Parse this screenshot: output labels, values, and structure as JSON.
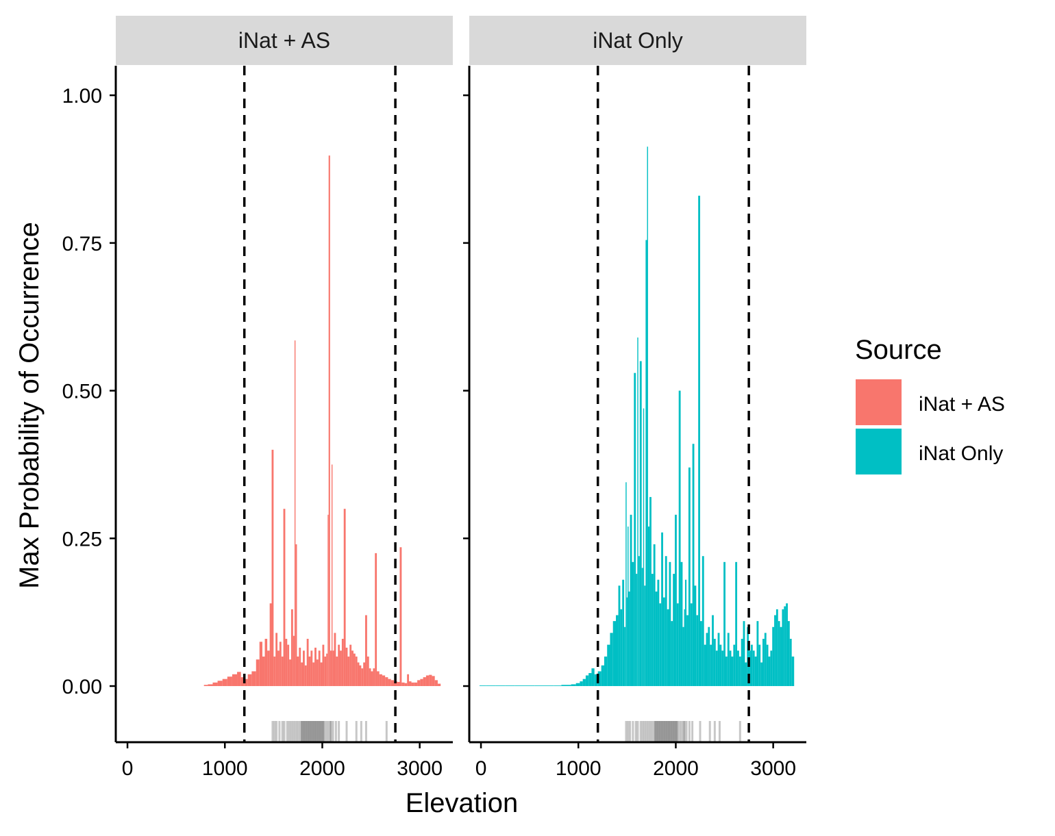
{
  "chart_data": {
    "type": "bar",
    "facets": [
      {
        "strip_label": "iNat + AS",
        "series_name": "iNat + AS",
        "color": "#F8766D",
        "points": [
          [
            800,
            0.002
          ],
          [
            850,
            0.003
          ],
          [
            900,
            0.006
          ],
          [
            950,
            0.009
          ],
          [
            1000,
            0.012
          ],
          [
            1050,
            0.016
          ],
          [
            1100,
            0.02
          ],
          [
            1150,
            0.024
          ],
          [
            1180,
            0.015
          ],
          [
            1220,
            0.012
          ],
          [
            1250,
            0.02
          ],
          [
            1300,
            0.025
          ],
          [
            1340,
            0.045
          ],
          [
            1370,
            0.075
          ],
          [
            1400,
            0.05
          ],
          [
            1420,
            0.08
          ],
          [
            1450,
            0.06
          ],
          [
            1470,
            0.14
          ],
          [
            1490,
            0.4
          ],
          [
            1510,
            0.05
          ],
          [
            1530,
            0.09
          ],
          [
            1550,
            0.06
          ],
          [
            1570,
            0.075
          ],
          [
            1590,
            0.05
          ],
          [
            1610,
            0.3
          ],
          [
            1630,
            0.08
          ],
          [
            1650,
            0.07
          ],
          [
            1670,
            0.045
          ],
          [
            1690,
            0.13
          ],
          [
            1710,
            0.085
          ],
          [
            1720,
            0.585
          ],
          [
            1730,
            0.24
          ],
          [
            1750,
            0.05
          ],
          [
            1770,
            0.065
          ],
          [
            1790,
            0.04
          ],
          [
            1810,
            0.06
          ],
          [
            1830,
            0.035
          ],
          [
            1850,
            0.08
          ],
          [
            1870,
            0.05
          ],
          [
            1890,
            0.06
          ],
          [
            1910,
            0.04
          ],
          [
            1930,
            0.065
          ],
          [
            1950,
            0.045
          ],
          [
            1970,
            0.06
          ],
          [
            1990,
            0.04
          ],
          [
            2010,
            0.07
          ],
          [
            2030,
            0.05
          ],
          [
            2050,
            0.055
          ],
          [
            2060,
            0.29
          ],
          [
            2070,
            0.898
          ],
          [
            2090,
            0.06
          ],
          [
            2100,
            0.375
          ],
          [
            2110,
            0.06
          ],
          [
            2130,
            0.09
          ],
          [
            2150,
            0.05
          ],
          [
            2170,
            0.07
          ],
          [
            2190,
            0.06
          ],
          [
            2210,
            0.08
          ],
          [
            2230,
            0.3
          ],
          [
            2250,
            0.065
          ],
          [
            2270,
            0.05
          ],
          [
            2290,
            0.07
          ],
          [
            2310,
            0.06
          ],
          [
            2330,
            0.055
          ],
          [
            2350,
            0.05
          ],
          [
            2370,
            0.04
          ],
          [
            2390,
            0.035
          ],
          [
            2410,
            0.03
          ],
          [
            2430,
            0.04
          ],
          [
            2450,
            0.12
          ],
          [
            2470,
            0.05
          ],
          [
            2490,
            0.03
          ],
          [
            2510,
            0.025
          ],
          [
            2530,
            0.03
          ],
          [
            2550,
            0.225
          ],
          [
            2570,
            0.025
          ],
          [
            2600,
            0.02
          ],
          [
            2630,
            0.018
          ],
          [
            2660,
            0.015
          ],
          [
            2690,
            0.012
          ],
          [
            2720,
            0.01
          ],
          [
            2750,
            0.008
          ],
          [
            2790,
            0.007
          ],
          [
            2800,
            0.235
          ],
          [
            2830,
            0.006
          ],
          [
            2860,
            0.005
          ],
          [
            2880,
            0.02
          ],
          [
            2900,
            0.008
          ],
          [
            2930,
            0.006
          ],
          [
            2960,
            0.006
          ],
          [
            2990,
            0.01
          ],
          [
            3020,
            0.012
          ],
          [
            3050,
            0.015
          ],
          [
            3080,
            0.018
          ],
          [
            3110,
            0.019
          ],
          [
            3140,
            0.017
          ],
          [
            3170,
            0.01
          ],
          [
            3200,
            0.004
          ]
        ]
      },
      {
        "strip_label": "iNat Only",
        "series_name": "iNat Only",
        "color": "#00BFC4",
        "points": [
          [
            0,
            0.001
          ],
          [
            100,
            0.001
          ],
          [
            200,
            0.001
          ],
          [
            300,
            0.001
          ],
          [
            400,
            0.001
          ],
          [
            500,
            0.001
          ],
          [
            600,
            0.001
          ],
          [
            700,
            0.001
          ],
          [
            800,
            0.001
          ],
          [
            850,
            0.002
          ],
          [
            900,
            0.002
          ],
          [
            950,
            0.003
          ],
          [
            1000,
            0.005
          ],
          [
            1030,
            0.008
          ],
          [
            1060,
            0.012
          ],
          [
            1090,
            0.018
          ],
          [
            1120,
            0.022
          ],
          [
            1150,
            0.03
          ],
          [
            1180,
            0.02
          ],
          [
            1220,
            0.025
          ],
          [
            1250,
            0.035
          ],
          [
            1280,
            0.05
          ],
          [
            1310,
            0.07
          ],
          [
            1340,
            0.09
          ],
          [
            1370,
            0.11
          ],
          [
            1400,
            0.12
          ],
          [
            1420,
            0.17
          ],
          [
            1440,
            0.13
          ],
          [
            1460,
            0.18
          ],
          [
            1480,
            0.1
          ],
          [
            1490,
            0.345
          ],
          [
            1500,
            0.15
          ],
          [
            1510,
            0.27
          ],
          [
            1520,
            0.16
          ],
          [
            1540,
            0.29
          ],
          [
            1560,
            0.21
          ],
          [
            1580,
            0.53
          ],
          [
            1600,
            0.19
          ],
          [
            1610,
            0.59
          ],
          [
            1620,
            0.22
          ],
          [
            1640,
            0.55
          ],
          [
            1660,
            0.2
          ],
          [
            1670,
            0.47
          ],
          [
            1680,
            0.17
          ],
          [
            1700,
            0.755
          ],
          [
            1710,
            0.913
          ],
          [
            1720,
            0.27
          ],
          [
            1740,
            0.32
          ],
          [
            1760,
            0.19
          ],
          [
            1780,
            0.24
          ],
          [
            1800,
            0.16
          ],
          [
            1820,
            0.18
          ],
          [
            1840,
            0.14
          ],
          [
            1860,
            0.26
          ],
          [
            1880,
            0.15
          ],
          [
            1900,
            0.22
          ],
          [
            1920,
            0.13
          ],
          [
            1940,
            0.21
          ],
          [
            1960,
            0.11
          ],
          [
            1980,
            0.19
          ],
          [
            2000,
            0.29
          ],
          [
            2020,
            0.14
          ],
          [
            2040,
            0.5
          ],
          [
            2060,
            0.21
          ],
          [
            2080,
            0.1
          ],
          [
            2090,
            0.13
          ],
          [
            2100,
            0.18
          ],
          [
            2120,
            0.12
          ],
          [
            2140,
            0.37
          ],
          [
            2160,
            0.14
          ],
          [
            2180,
            0.41
          ],
          [
            2200,
            0.17
          ],
          [
            2220,
            0.12
          ],
          [
            2240,
            0.83
          ],
          [
            2260,
            0.11
          ],
          [
            2280,
            0.22
          ],
          [
            2300,
            0.07
          ],
          [
            2320,
            0.09
          ],
          [
            2340,
            0.1
          ],
          [
            2360,
            0.07
          ],
          [
            2380,
            0.12
          ],
          [
            2400,
            0.08
          ],
          [
            2420,
            0.06
          ],
          [
            2440,
            0.09
          ],
          [
            2460,
            0.07
          ],
          [
            2480,
            0.06
          ],
          [
            2500,
            0.21
          ],
          [
            2520,
            0.05
          ],
          [
            2540,
            0.09
          ],
          [
            2560,
            0.06
          ],
          [
            2580,
            0.05
          ],
          [
            2600,
            0.07
          ],
          [
            2620,
            0.21
          ],
          [
            2640,
            0.06
          ],
          [
            2660,
            0.05
          ],
          [
            2680,
            0.08
          ],
          [
            2700,
            0.11
          ],
          [
            2720,
            0.04
          ],
          [
            2740,
            0.1
          ],
          [
            2760,
            0.06
          ],
          [
            2780,
            0.07
          ],
          [
            2800,
            0.06
          ],
          [
            2820,
            0.05
          ],
          [
            2840,
            0.11
          ],
          [
            2860,
            0.07
          ],
          [
            2880,
            0.04
          ],
          [
            2900,
            0.08
          ],
          [
            2920,
            0.09
          ],
          [
            2940,
            0.07
          ],
          [
            2960,
            0.05
          ],
          [
            2980,
            0.06
          ],
          [
            3000,
            0.1
          ],
          [
            3020,
            0.12
          ],
          [
            3040,
            0.13
          ],
          [
            3060,
            0.11
          ],
          [
            3080,
            0.1
          ],
          [
            3100,
            0.13
          ],
          [
            3120,
            0.135
          ],
          [
            3140,
            0.14
          ],
          [
            3160,
            0.11
          ],
          [
            3180,
            0.08
          ],
          [
            3200,
            0.05
          ]
        ]
      }
    ],
    "vlines": [
      1200,
      2750
    ],
    "rug": [
      1490,
      1510,
      1530,
      1560,
      1590,
      1610,
      1640,
      1660,
      1680,
      1700,
      1720,
      1740,
      1760,
      1780,
      1790,
      1800,
      1810,
      1820,
      1830,
      1840,
      1850,
      1860,
      1870,
      1880,
      1890,
      1900,
      1910,
      1920,
      1930,
      1940,
      1950,
      1960,
      1970,
      1980,
      1990,
      2000,
      2010,
      2020,
      2040,
      2060,
      2080,
      2090,
      2110,
      2140,
      2170,
      2250,
      2350,
      2400,
      2450,
      2660
    ],
    "xlim": [
      -120,
      3340
    ],
    "ylim": [
      -0.095,
      1.05
    ],
    "x_ticks": [
      "0",
      "1000",
      "2000",
      "3000"
    ],
    "x_tick_values": [
      0,
      1000,
      2000,
      3000
    ],
    "y_ticks": [
      "0.00",
      "0.25",
      "0.50",
      "0.75",
      "1.00"
    ],
    "y_tick_values": [
      0,
      0.25,
      0.5,
      0.75,
      1.0
    ],
    "xlabel": "Elevation",
    "ylabel": "Max Probability of Occurrence",
    "grid": false,
    "legend": {
      "title": "Source",
      "position": "right",
      "entries": [
        {
          "label": "iNat + AS",
          "color": "#F8766D"
        },
        {
          "label": "iNat Only",
          "color": "#00BFC4"
        }
      ]
    }
  }
}
